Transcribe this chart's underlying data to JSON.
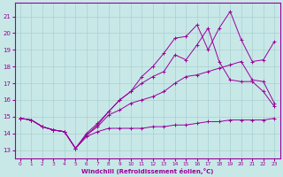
{
  "xlabel": "Windchill (Refroidissement éolien,°C)",
  "bg_color": "#c8e8e8",
  "line_color": "#990099",
  "grid_color": "#a8d0d0",
  "x_ticks": [
    0,
    1,
    2,
    3,
    4,
    5,
    6,
    7,
    8,
    9,
    10,
    11,
    12,
    13,
    14,
    15,
    16,
    17,
    18,
    19,
    20,
    21,
    22,
    23
  ],
  "y_ticks": [
    13,
    14,
    15,
    16,
    17,
    18,
    19,
    20,
    21
  ],
  "ylim": [
    12.5,
    21.8
  ],
  "xlim": [
    -0.5,
    23.5
  ],
  "series": [
    [
      14.9,
      14.8,
      14.4,
      14.2,
      14.1,
      13.1,
      13.8,
      14.1,
      14.3,
      14.3,
      14.3,
      14.3,
      14.4,
      14.4,
      14.5,
      14.5,
      14.6,
      14.7,
      14.7,
      14.8,
      14.8,
      14.8,
      14.8,
      14.9
    ],
    [
      14.9,
      14.8,
      14.4,
      14.2,
      14.1,
      13.1,
      13.9,
      14.4,
      15.1,
      15.4,
      15.8,
      16.0,
      16.2,
      16.5,
      17.0,
      17.4,
      17.5,
      17.7,
      17.9,
      18.1,
      18.3,
      17.2,
      17.1,
      15.8
    ],
    [
      14.9,
      14.8,
      14.4,
      14.2,
      14.1,
      13.1,
      14.0,
      14.6,
      15.3,
      16.0,
      16.5,
      17.0,
      17.4,
      17.7,
      18.7,
      18.4,
      19.3,
      20.3,
      18.3,
      17.2,
      17.1,
      17.1,
      16.5,
      15.6
    ],
    [
      14.9,
      14.8,
      14.4,
      14.2,
      14.1,
      13.1,
      13.9,
      14.5,
      15.3,
      16.0,
      16.5,
      17.4,
      18.0,
      18.8,
      19.7,
      19.8,
      20.5,
      19.0,
      20.3,
      21.3,
      19.6,
      18.3,
      18.4,
      19.5
    ]
  ]
}
